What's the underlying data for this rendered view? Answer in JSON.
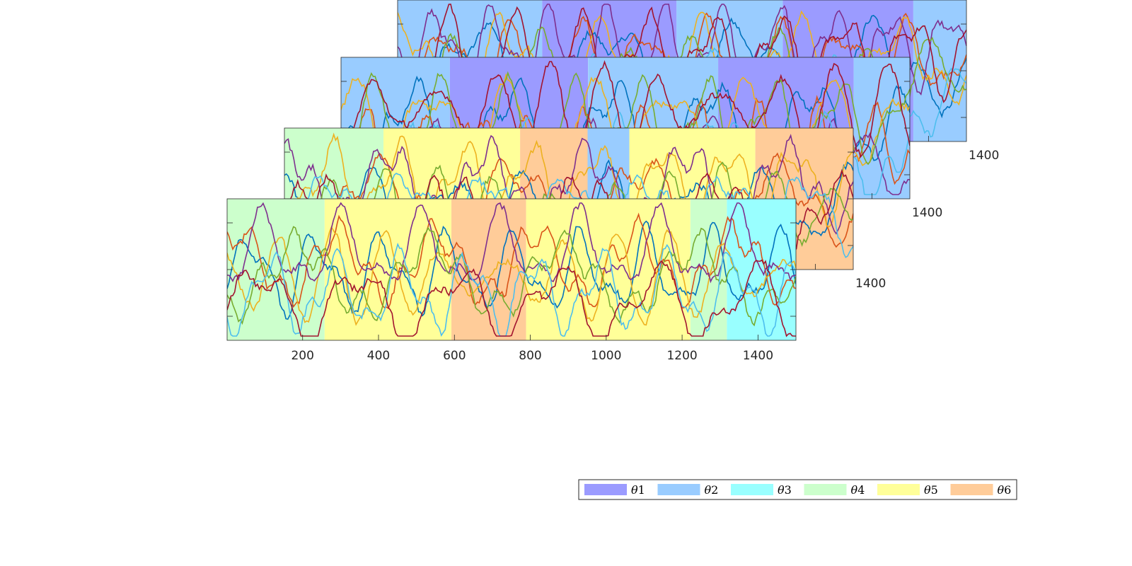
{
  "chart_data": {
    "type": "area",
    "x_ticks": [
      200,
      400,
      600,
      800,
      1000,
      1200,
      1400
    ],
    "xlim": [
      1,
      1500
    ],
    "ylim": [
      0,
      1
    ],
    "legend": {
      "placement": "bottom-right",
      "entries": [
        {
          "label": "1",
          "color": "#9b9bff"
        },
        {
          "label": "2",
          "color": "#99ccff"
        },
        {
          "label": "3",
          "color": "#99ffff"
        },
        {
          "label": "4",
          "color": "#ccffcc"
        },
        {
          "label": "5",
          "color": "#ffff99"
        },
        {
          "label": "6",
          "color": "#ffcc99"
        }
      ],
      "symbol": "θ"
    },
    "line_colors": [
      "#0072bd",
      "#d95319",
      "#edb120",
      "#7e2f8e",
      "#77ac30",
      "#4dbeee",
      "#a2142f"
    ],
    "panels": [
      {
        "name": "panel-front",
        "state_segments": [
          {
            "start": 1,
            "end": 258,
            "state": 4
          },
          {
            "start": 258,
            "end": 592,
            "state": 5
          },
          {
            "start": 592,
            "end": 789,
            "state": 6
          },
          {
            "start": 789,
            "end": 1222,
            "state": 5
          },
          {
            "start": 1222,
            "end": 1318,
            "state": 4
          },
          {
            "start": 1318,
            "end": 1500,
            "state": 3
          }
        ]
      },
      {
        "name": "panel-second",
        "state_segments": [
          {
            "start": 1,
            "end": 262,
            "state": 4
          },
          {
            "start": 262,
            "end": 622,
            "state": 5
          },
          {
            "start": 622,
            "end": 800,
            "state": 6
          },
          {
            "start": 800,
            "end": 910,
            "state": 2
          },
          {
            "start": 910,
            "end": 1242,
            "state": 5
          },
          {
            "start": 1242,
            "end": 1500,
            "state": 6
          }
        ]
      },
      {
        "name": "panel-third",
        "state_segments": [
          {
            "start": 1,
            "end": 288,
            "state": 2
          },
          {
            "start": 288,
            "end": 652,
            "state": 1
          },
          {
            "start": 652,
            "end": 995,
            "state": 2
          },
          {
            "start": 995,
            "end": 1352,
            "state": 1
          },
          {
            "start": 1352,
            "end": 1500,
            "state": 2
          }
        ]
      },
      {
        "name": "panel-back",
        "state_segments": [
          {
            "start": 1,
            "end": 382,
            "state": 2
          },
          {
            "start": 382,
            "end": 736,
            "state": 1
          },
          {
            "start": 736,
            "end": 1016,
            "state": 2
          },
          {
            "start": 1016,
            "end": 1360,
            "state": 1
          },
          {
            "start": 1360,
            "end": 1500,
            "state": 2
          }
        ]
      }
    ],
    "back_panel_tick_label": "1400"
  }
}
